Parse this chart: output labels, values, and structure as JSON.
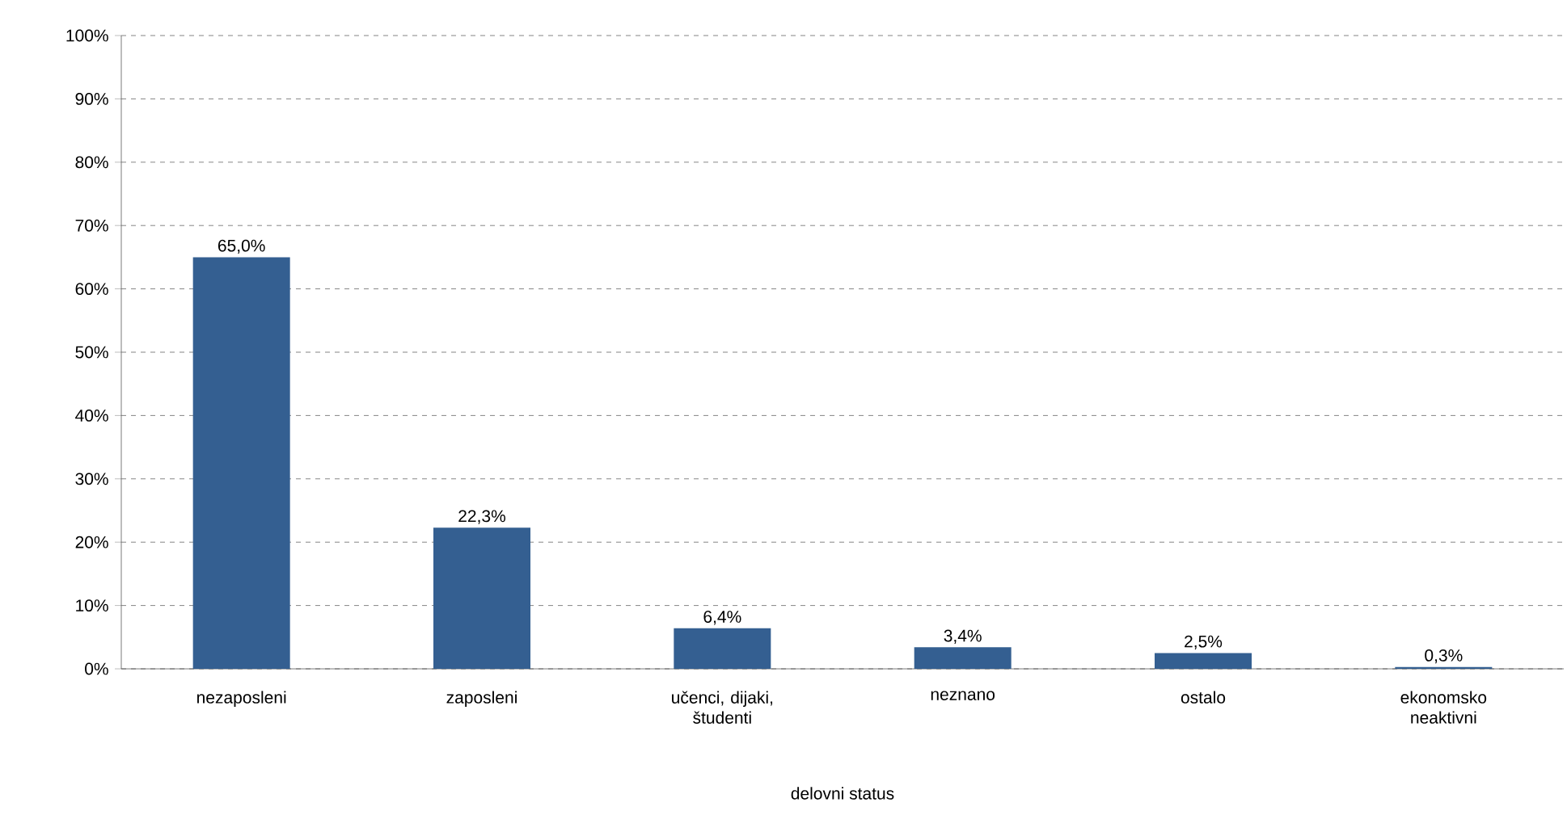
{
  "chart_data": {
    "type": "bar",
    "xlabel": "delovni status",
    "categories": [
      "nezaposleni",
      "zaposleni",
      "učenci, dijaki, študenti",
      "neznano",
      "ostalo",
      "ekonomsko neaktivni"
    ],
    "values": [
      65.0,
      22.3,
      6.4,
      3.4,
      2.5,
      0.3
    ],
    "value_labels": [
      "65,0%",
      "22,3%",
      "6,4%",
      "3,4%",
      "2,5%",
      "0,3%"
    ],
    "color": "#345f91",
    "ylim": [
      0,
      100
    ],
    "yticks": [
      {
        "value": 0,
        "label": "0%"
      },
      {
        "value": 10,
        "label": "10%"
      },
      {
        "value": 20,
        "label": "20%"
      },
      {
        "value": 30,
        "label": "30%"
      },
      {
        "value": 40,
        "label": "40%"
      },
      {
        "value": 50,
        "label": "50%"
      },
      {
        "value": 60,
        "label": "60%"
      },
      {
        "value": 70,
        "label": "70%"
      },
      {
        "value": 80,
        "label": "80%"
      },
      {
        "value": 90,
        "label": "90%"
      },
      {
        "value": 100,
        "label": "100%"
      }
    ],
    "grid": "y"
  }
}
